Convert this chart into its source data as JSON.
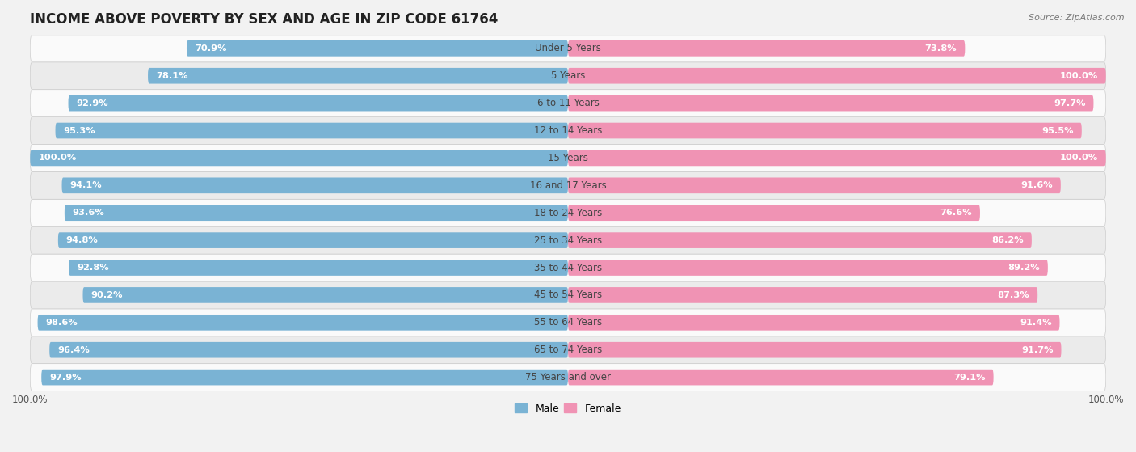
{
  "title": "INCOME ABOVE POVERTY BY SEX AND AGE IN ZIP CODE 61764",
  "source": "Source: ZipAtlas.com",
  "categories": [
    "Under 5 Years",
    "5 Years",
    "6 to 11 Years",
    "12 to 14 Years",
    "15 Years",
    "16 and 17 Years",
    "18 to 24 Years",
    "25 to 34 Years",
    "35 to 44 Years",
    "45 to 54 Years",
    "55 to 64 Years",
    "65 to 74 Years",
    "75 Years and over"
  ],
  "male_values": [
    70.9,
    78.1,
    92.9,
    95.3,
    100.0,
    94.1,
    93.6,
    94.8,
    92.8,
    90.2,
    98.6,
    96.4,
    97.9
  ],
  "female_values": [
    73.8,
    100.0,
    97.7,
    95.5,
    100.0,
    91.6,
    76.6,
    86.2,
    89.2,
    87.3,
    91.4,
    91.7,
    79.1
  ],
  "male_color": "#7ab3d4",
  "female_color": "#f093b4",
  "male_label": "Male",
  "female_label": "Female",
  "background_color": "#f2f2f2",
  "row_color_light": "#fafafa",
  "row_color_dark": "#ebebeb",
  "bar_height": 0.58,
  "title_fontsize": 12,
  "label_fontsize": 8.5,
  "value_fontsize": 8.2,
  "legend_fontsize": 9,
  "source_fontsize": 8
}
